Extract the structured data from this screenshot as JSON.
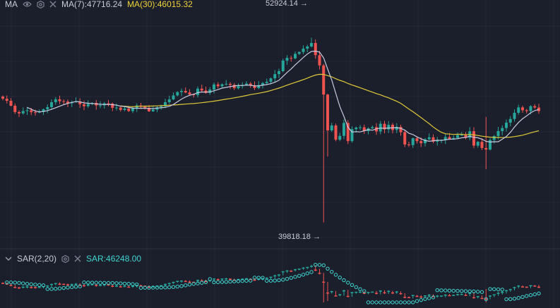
{
  "colors": {
    "background": "#1b1e2b",
    "grid": "#262a3a",
    "up": "#26a69a",
    "down": "#ef5350",
    "ma7": "#c8cbe0",
    "ma30": "#e0c93a",
    "sar": "#3fd6d0"
  },
  "main_indicator": {
    "name": "MA",
    "ma7_label": "MA(7):47716.24",
    "ma30_label": "MA(30):46015.32",
    "icons": [
      "eye-icon",
      "settings-icon",
      "close-icon"
    ]
  },
  "sub_indicator": {
    "toggle_icon": "chevron-down-icon",
    "name": "SAR(2,20)",
    "sar_label": "SAR:46248.00",
    "icons": [
      "settings-icon",
      "close-icon"
    ]
  },
  "markers": {
    "high_label": "52924.14",
    "low_label": "39818.18"
  },
  "chart_data": {
    "type": "candlestick",
    "price_range": [
      38000,
      55600
    ],
    "grid": true,
    "series": [
      {
        "name": "MA(7)",
        "last_value": 47716.24
      },
      {
        "name": "MA(30)",
        "last_value": 46015.32
      },
      {
        "name": "SAR",
        "last_value": 46248.0
      }
    ],
    "high": 52924.14,
    "low": 39818.18,
    "closes": [
      48600,
      48450,
      48100,
      47650,
      47560,
      47720,
      47780,
      47640,
      47630,
      47660,
      47850,
      48000,
      48350,
      48560,
      48420,
      48390,
      48280,
      48360,
      48400,
      48200,
      48060,
      48220,
      48300,
      48120,
      48130,
      48270,
      48250,
      47950,
      47970,
      47800,
      47900,
      47720,
      47920,
      48120,
      48030,
      47950,
      47700,
      47820,
      47990,
      48060,
      48350,
      48550,
      48830,
      49070,
      49150,
      49040,
      48900,
      48860,
      49310,
      49180,
      49010,
      49250,
      49610,
      49480,
      49620,
      49650,
      49580,
      49340,
      49490,
      49570,
      49670,
      49540,
      49350,
      49560,
      49710,
      49800,
      50040,
      50340,
      50550,
      51300,
      51490,
      51460,
      51780,
      51910,
      52150,
      52300,
      52550,
      51690,
      50960,
      48890,
      46350,
      46700,
      45690,
      45960,
      46880,
      45590,
      46440,
      46550,
      46570,
      46300,
      46490,
      46580,
      46280,
      46820,
      46420,
      46750,
      46380,
      46600,
      46220,
      45350,
      45310,
      45790,
      45590,
      45440,
      45720,
      45860,
      45550,
      45650,
      45660,
      45880,
      45750,
      45810,
      46010,
      46030,
      45820,
      46290,
      45270,
      45540,
      45100,
      44990,
      45670,
      45950,
      46300,
      46520,
      46900,
      47160,
      47600,
      47980,
      47780,
      47720,
      48070,
      47970,
      47716
    ]
  }
}
